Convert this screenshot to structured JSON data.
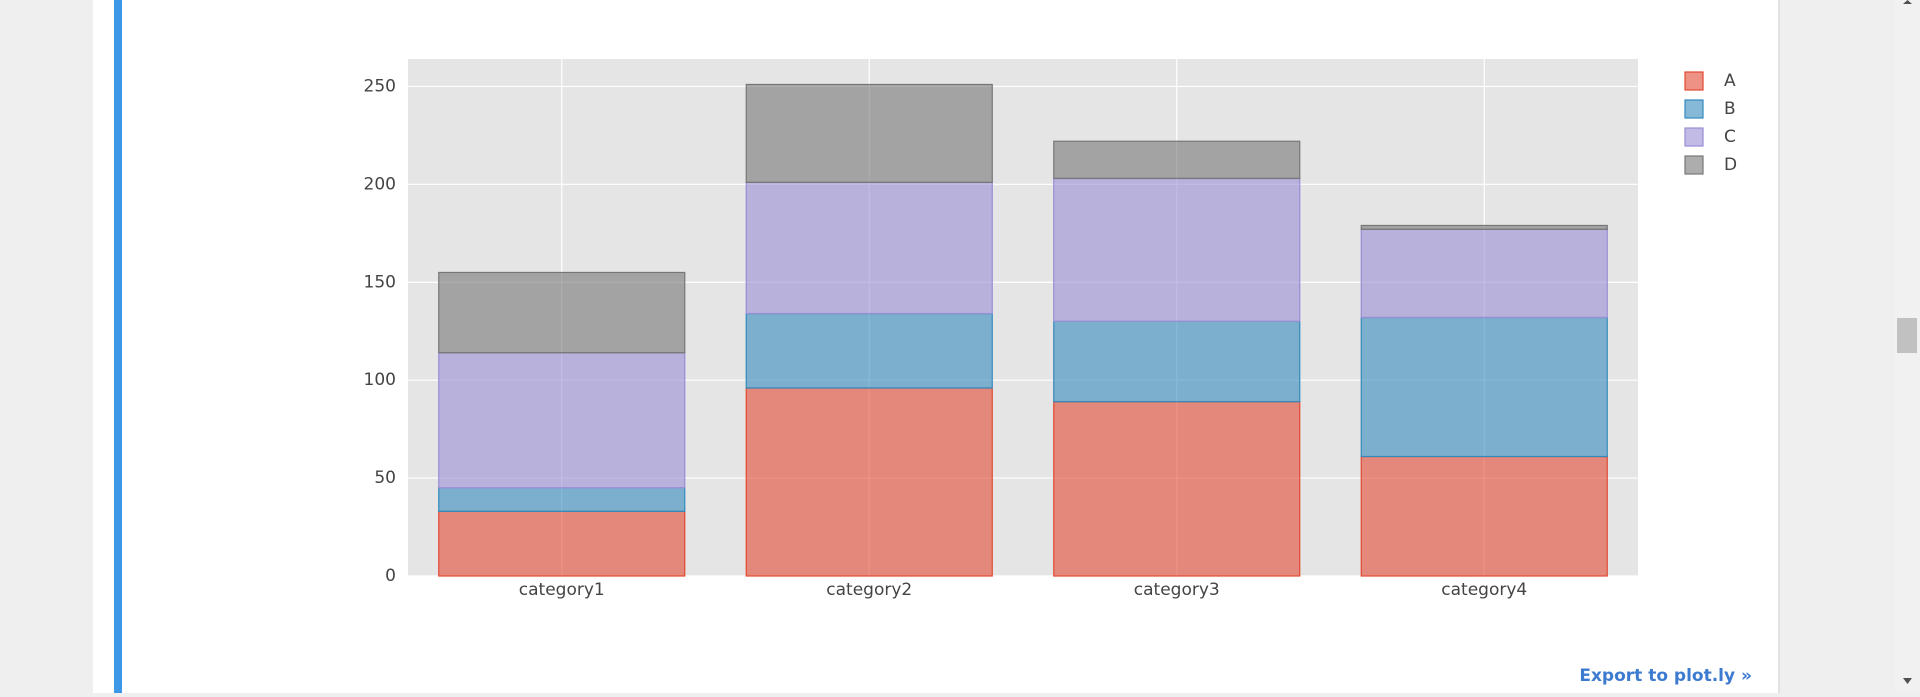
{
  "chart_data": {
    "type": "stacked_bar",
    "categories": [
      "category1",
      "category2",
      "category3",
      "category4"
    ],
    "series": [
      {
        "name": "A",
        "color": "#E24A33",
        "values": [
          33,
          96,
          89,
          61
        ]
      },
      {
        "name": "B",
        "color": "#348ABD",
        "values": [
          12,
          38,
          41,
          71
        ]
      },
      {
        "name": "C",
        "color": "#988ED5",
        "values": [
          69,
          67,
          73,
          45
        ]
      },
      {
        "name": "D",
        "color": "#777777",
        "values": [
          41,
          50,
          19,
          2
        ]
      }
    ],
    "ylim": [
      0,
      264
    ],
    "yticks": [
      0,
      50,
      100,
      150,
      200,
      250
    ],
    "grid": true,
    "legend": "right"
  },
  "export_link": "Export to plot.ly »"
}
